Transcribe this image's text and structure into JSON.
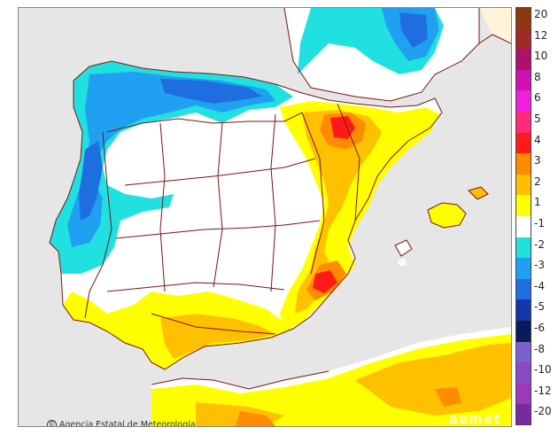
{
  "credit": {
    "text": "Agencia Estatal de Meteorología",
    "icon": "copyright-icon"
  },
  "watermark": {
    "text": "aemet"
  },
  "legend": {
    "labels": [
      "20",
      "12",
      "10",
      "8",
      "6",
      "5",
      "4",
      "3",
      "2",
      "1",
      "-1",
      "-2",
      "-3",
      "-4",
      "-5",
      "-6",
      "-8",
      "-10",
      "-12",
      "-20"
    ],
    "colors": [
      "#8b3a0f",
      "#a02a2a",
      "#b0106a",
      "#d010b0",
      "#f01fe0",
      "#ff2a7a",
      "#ff1a1a",
      "#ff8c00",
      "#ffc000",
      "#ffff00",
      "#ffffff",
      "#20e0e0",
      "#20a0f0",
      "#1e6ee0",
      "#1238a8",
      "#0a1a5a",
      "#7a60d0",
      "#8a4ac8",
      "#9a3ab8",
      "#7a2aa0"
    ]
  },
  "colors": {
    "land": "#ffffff",
    "sea": "#e6e6e6",
    "border": "#7a1414",
    "warm_light": "#ffff00",
    "warm_mid": "#ffc000",
    "warm_strong": "#ff8c00",
    "warm_hot": "#ff1a1a",
    "cool_light": "#20e0e0",
    "cool_mid": "#20a0f0",
    "cool_strong": "#1e6ee0"
  }
}
